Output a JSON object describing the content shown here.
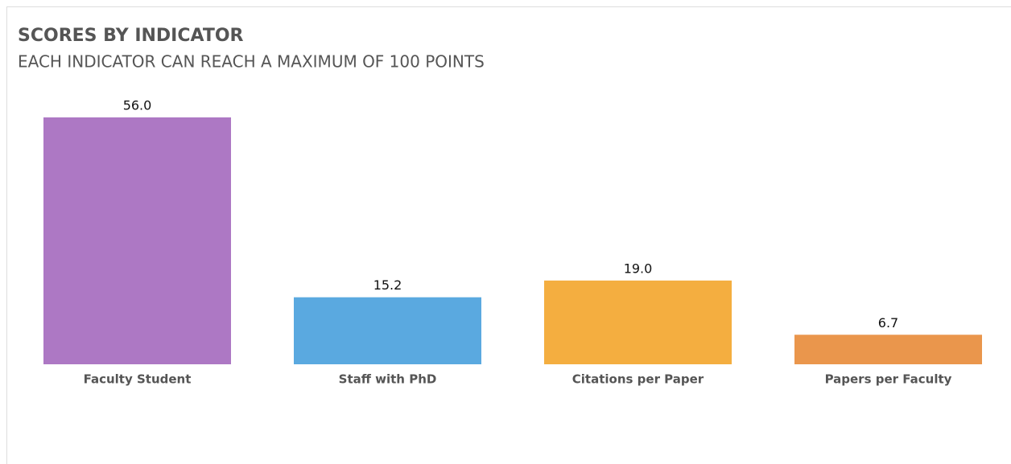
{
  "chart_data": {
    "type": "bar",
    "title": "SCORES BY INDICATOR",
    "subtitle": "EACH INDICATOR CAN REACH A MAXIMUM OF 100 POINTS",
    "categories": [
      "Faculty Student",
      "Staff with PhD",
      "Citations per Paper",
      "Papers per Faculty"
    ],
    "values": [
      56,
      15.2,
      19,
      6.7
    ],
    "value_labels": [
      "56.0",
      "15.2",
      "19.0",
      "6.7"
    ],
    "colors": [
      "#ad78c4",
      "#5aa9e0",
      "#f4ae40",
      "#ea964c"
    ]
  }
}
